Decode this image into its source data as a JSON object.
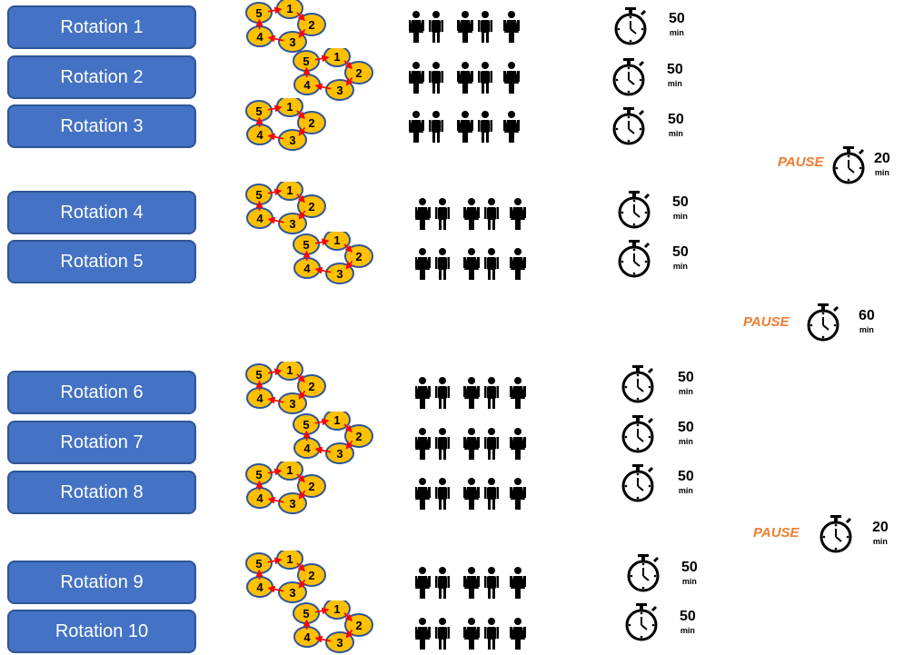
{
  "rotations": [
    {
      "label": "Rotation 1",
      "duration": "50",
      "unit": "min"
    },
    {
      "label": "Rotation 2",
      "duration": "50",
      "unit": "min"
    },
    {
      "label": "Rotation 3",
      "duration": "50",
      "unit": "min"
    },
    {
      "label": "Rotation 4",
      "duration": "50",
      "unit": "min"
    },
    {
      "label": "Rotation 5",
      "duration": "50",
      "unit": "min"
    },
    {
      "label": "Rotation 6",
      "duration": "50",
      "unit": "min"
    },
    {
      "label": "Rotation 7",
      "duration": "50",
      "unit": "min"
    },
    {
      "label": "Rotation 8",
      "duration": "50",
      "unit": "min"
    },
    {
      "label": "Rotation 9",
      "duration": "50",
      "unit": "min"
    },
    {
      "label": "Rotation 10",
      "duration": "50",
      "unit": "min"
    }
  ],
  "pauses": [
    {
      "label": "PAUSE",
      "duration": "20",
      "unit": "min"
    },
    {
      "label": "PAUSE",
      "duration": "60",
      "unit": "min"
    },
    {
      "label": "PAUSE",
      "duration": "20",
      "unit": "min"
    }
  ],
  "cycle_nodes": [
    "1",
    "2",
    "3",
    "4",
    "5"
  ],
  "people_per_rotation": 5,
  "colors": {
    "button": "#4472c4",
    "button_border": "#2f5597",
    "node_fill": "#ffc000",
    "node_border": "#2f5597",
    "arrow": "#ff0000",
    "pause_text": "#ed7d31"
  },
  "icons": {
    "people": "person-icon",
    "timer": "stopwatch-icon",
    "cycle": "station-cycle-diagram"
  }
}
